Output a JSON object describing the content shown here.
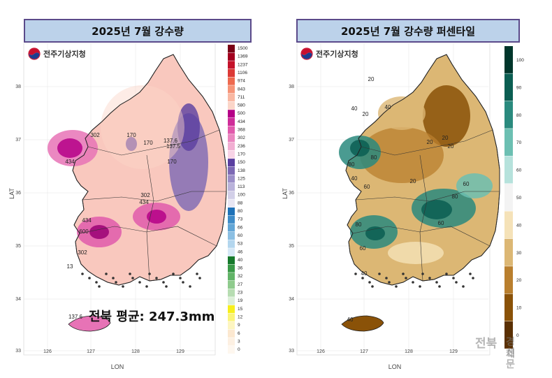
{
  "left_panel": {
    "title": "2025년 7월 강수량",
    "logo_text": "전주기상지청",
    "average_label": "전북 평균: 247.3mm",
    "legend_values": [
      "1500",
      "1369",
      "1237",
      "1106",
      "974",
      "843",
      "711",
      "580",
      "500",
      "434",
      "368",
      "302",
      "236",
      "170",
      "150",
      "138",
      "125",
      "113",
      "100",
      "88",
      "80",
      "73",
      "66",
      "60",
      "53",
      "46",
      "40",
      "36",
      "32",
      "27",
      "23",
      "19",
      "15",
      "12",
      "9",
      "6",
      "3",
      "0"
    ],
    "legend_colors": [
      "#7a0016",
      "#a3001f",
      "#c4122a",
      "#dc3a36",
      "#ee6a4f",
      "#f69478",
      "#f9b8a3",
      "#fbd5c8",
      "#b50087",
      "#cf2d99",
      "#e15aac",
      "#ea86bf",
      "#f1aed2",
      "#f8d3e6",
      "#5a3fa0",
      "#7c68b4",
      "#9b8ec8",
      "#b9b2da",
      "#d2cfe8",
      "#e8e6f3",
      "#1e72b8",
      "#3f8cc8",
      "#63a6d6",
      "#8bbfe3",
      "#b3d6ee",
      "#d6e8f6",
      "#167a2c",
      "#3a9a48",
      "#62b468",
      "#8fcb8d",
      "#b7ddb2",
      "#dcefd8",
      "#f7ef1c",
      "#fbf478",
      "#fdf5c0",
      "#fce8d0",
      "#fdf0e2",
      "#fef7ef"
    ],
    "contour_labels": [
      "302",
      "170",
      "170",
      "137.6",
      "137.5",
      "434",
      "170",
      "302",
      "434",
      "434",
      "600",
      "302",
      "13",
      "137.6"
    ],
    "x_ticks": [
      "126",
      "127",
      "128",
      "129"
    ],
    "y_ticks": [
      "38",
      "37",
      "36",
      "35",
      "34",
      "33"
    ],
    "xlabel": "LON",
    "ylabel": "LAT"
  },
  "right_panel": {
    "title": "2025년 7월 강수량 퍼센타일",
    "logo_text": "전주기상지청",
    "legend_values": [
      "100",
      "90",
      "80",
      "70",
      "60",
      "50",
      "40",
      "30",
      "20",
      "10",
      "0"
    ],
    "legend_colors": [
      "#00362b",
      "#0b5e52",
      "#2a8a7e",
      "#6cbfb2",
      "#b6e2dc",
      "#f3f3f3",
      "#f5e2b8",
      "#dcb774",
      "#b97f2e",
      "#8a5208",
      "#5a3003"
    ],
    "contour_labels": [
      "20",
      "40",
      "20",
      "40",
      "20",
      "20",
      "20",
      "80",
      "80",
      "40",
      "60",
      "20",
      "60",
      "80",
      "60",
      "80",
      "60",
      "40",
      "40"
    ],
    "x_ticks": [
      "126",
      "127",
      "128",
      "129"
    ],
    "y_ticks": [
      "38",
      "37",
      "36",
      "35",
      "34",
      "33"
    ],
    "xlabel": "LON",
    "ylabel": "LAT"
  },
  "watermark": {
    "line1": "전북",
    "line2": "경제",
    "line3": "신문"
  }
}
